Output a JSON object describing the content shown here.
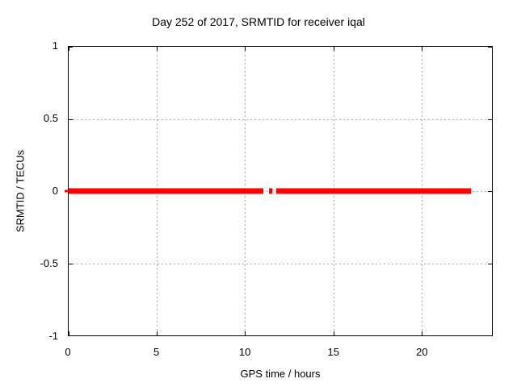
{
  "colors": {
    "background": "#ffffff",
    "axis": "#000000",
    "grid": "#a8a8a8",
    "series_red": "#ff0000"
  },
  "chart_data": {
    "type": "line",
    "title": "Day 252 of 2017, SRMTID for receiver iqal",
    "xlabel": "GPS time / hours",
    "ylabel": "SRMTID / TECUs",
    "xlim": [
      0,
      24
    ],
    "ylim": [
      -1,
      1
    ],
    "grid": true,
    "legend": "none",
    "xticks": [
      0,
      5,
      10,
      15,
      20
    ],
    "xticklabels": [
      "0",
      "5",
      "10",
      "15",
      "20"
    ],
    "yticks": [
      1,
      0.5,
      0,
      -0.5,
      -1
    ],
    "yticklabels": [
      "1",
      "0.5",
      "0",
      "-0.5",
      "-1"
    ],
    "grid_xticks": [
      5,
      10,
      15,
      20
    ],
    "grid_yticks": [
      0.5,
      0,
      -0.5
    ],
    "series": [
      {
        "name": "SRMTID",
        "color": "#ff0000",
        "y_value": 0,
        "segments_hours": [
          [
            0,
            11.02
          ],
          [
            11.37,
            11.52
          ],
          [
            11.77,
            22.82
          ]
        ],
        "edge_marker_at_hour": 0
      }
    ]
  }
}
